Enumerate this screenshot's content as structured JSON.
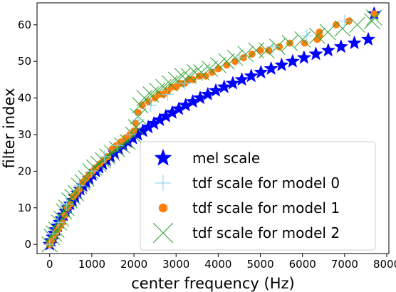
{
  "chart_data": {
    "type": "scatter",
    "xlabel": "center frequency (Hz)",
    "ylabel": "filter index",
    "xlim": [
      -300,
      8050
    ],
    "ylim": [
      -2.5,
      66
    ],
    "xticks": [
      0,
      1000,
      2000,
      3000,
      4000,
      5000,
      6000,
      7000,
      8000
    ],
    "yticks": [
      0,
      10,
      20,
      30,
      40,
      50,
      60
    ],
    "grid": false,
    "legend_position": "lower-right",
    "series": [
      {
        "name": "mel scale",
        "marker": "star",
        "color": "#0000ff",
        "x": [
          0,
          35,
          72,
          110,
          150,
          191,
          235,
          280,
          328,
          378,
          430,
          484,
          541,
          600,
          661,
          726,
          793,
          863,
          936,
          1012,
          1092,
          1175,
          1261,
          1351,
          1444,
          1541,
          1642,
          1747,
          1857,
          1971,
          2089,
          2212,
          2341,
          2474,
          2613,
          2757,
          2908,
          3064,
          3226,
          3395,
          3571,
          3753,
          3943,
          4141,
          4346,
          4560,
          4783,
          5014,
          5255,
          5505,
          5765,
          6036,
          6317,
          6610,
          6914,
          7231,
          7560,
          7700
        ],
        "y": [
          0,
          1,
          2,
          3,
          4,
          5,
          6,
          7,
          8,
          9,
          10,
          11,
          12,
          13,
          14,
          15,
          16,
          17,
          18,
          19,
          20,
          21,
          22,
          23,
          24,
          25,
          26,
          27,
          28,
          29,
          30,
          31,
          32,
          33,
          34,
          35,
          36,
          37,
          38,
          39,
          40,
          41,
          42,
          43,
          44,
          45,
          46,
          47,
          48,
          49,
          50,
          51,
          52,
          53,
          54,
          55,
          56,
          63
        ]
      },
      {
        "name": "tdf scale for model 0",
        "marker": "plus",
        "color": "#87ceeb",
        "x": [
          0,
          80,
          200,
          400,
          700,
          1000,
          1300,
          1600,
          1900,
          2100,
          2400,
          2800,
          3200,
          3800,
          4500,
          5300,
          6100,
          7000
        ],
        "y": [
          0,
          3,
          6,
          11,
          16,
          20,
          24,
          27,
          30,
          34,
          38,
          41,
          44,
          48,
          51,
          54,
          57,
          61
        ]
      },
      {
        "name": "tdf scale for model 1",
        "marker": "circle",
        "color": "#ff7f0e",
        "x": [
          0,
          40,
          90,
          140,
          190,
          240,
          300,
          360,
          420,
          490,
          560,
          630,
          700,
          780,
          860,
          940,
          1020,
          1100,
          1190,
          1280,
          1380,
          1480,
          1580,
          1690,
          1800,
          1900,
          2000,
          2050,
          2100,
          2200,
          2350,
          2500,
          2600,
          2700,
          2800,
          2900,
          3000,
          3100,
          3200,
          3300,
          3400,
          3550,
          3700,
          3850,
          4000,
          4200,
          4400,
          4600,
          4800,
          5000,
          5200,
          5450,
          5700,
          6050,
          6350,
          6400,
          6400,
          6800,
          7100,
          7700
        ],
        "y": [
          0,
          1,
          2,
          3,
          4,
          5,
          6,
          8,
          10,
          11,
          13,
          14,
          15,
          17,
          18,
          19,
          20,
          21,
          22,
          23,
          24,
          26,
          27,
          28,
          29,
          30,
          31,
          33,
          36,
          38,
          39,
          40,
          41,
          41,
          42,
          43,
          43,
          44,
          44,
          45,
          45,
          46,
          46,
          47,
          48,
          49,
          50,
          51,
          52,
          53,
          53,
          54,
          55,
          55,
          56,
          58,
          57,
          60,
          61,
          63
        ]
      },
      {
        "name": "tdf scale for model 2",
        "marker": "x",
        "color": "#2ca02c",
        "x": [
          0,
          50,
          100,
          160,
          220,
          280,
          340,
          400,
          470,
          540,
          620,
          700,
          780,
          870,
          960,
          1060,
          1160,
          1260,
          1370,
          1480,
          1600,
          1720,
          1850,
          1980,
          2050,
          2100,
          2150,
          2250,
          2400,
          2550,
          2700,
          2850,
          3000,
          3150,
          3300,
          3450,
          3600,
          3800,
          4000,
          4200,
          4400,
          4650,
          4900,
          5150,
          5400,
          5700,
          6000,
          6350,
          6600,
          6950,
          7300,
          7650,
          7700
        ],
        "y": [
          0,
          2,
          3,
          4,
          6,
          7,
          9,
          10,
          12,
          13,
          14,
          16,
          17,
          18,
          20,
          21,
          22,
          23,
          24,
          25,
          26,
          27,
          28,
          30,
          32,
          35,
          38,
          40,
          41,
          42,
          43,
          44,
          45,
          46,
          46,
          47,
          47,
          48,
          49,
          50,
          51,
          52,
          53,
          53,
          54,
          55,
          56,
          57,
          58,
          59,
          60,
          61,
          62
        ]
      }
    ]
  }
}
